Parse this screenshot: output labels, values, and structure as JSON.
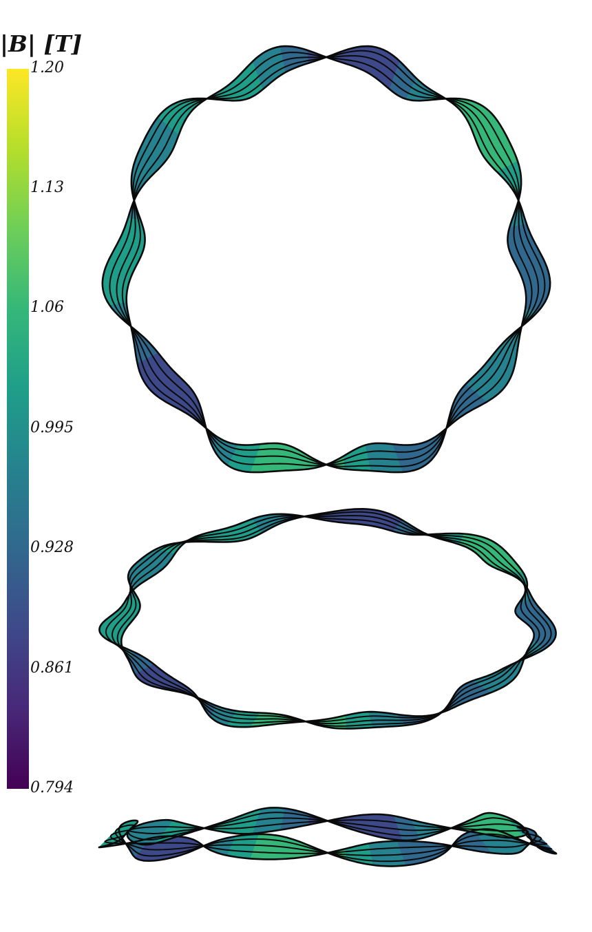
{
  "colorbar": {
    "title": "|B|  [T]",
    "colormap": "viridis",
    "range": [
      0.794,
      1.2
    ],
    "ticks": [
      "1.20",
      "1.13",
      "1.06",
      "0.995",
      "0.928",
      "0.861",
      "0.794"
    ],
    "stops": [
      "#fde725",
      "#b5de2b",
      "#6ece58",
      "#35b779",
      "#1f9e89",
      "#26828e",
      "#31688e",
      "#3e4989",
      "#482878",
      "#440154"
    ]
  },
  "views": [
    {
      "id": "top-view"
    },
    {
      "id": "oblique-view"
    },
    {
      "id": "side-view"
    }
  ]
}
